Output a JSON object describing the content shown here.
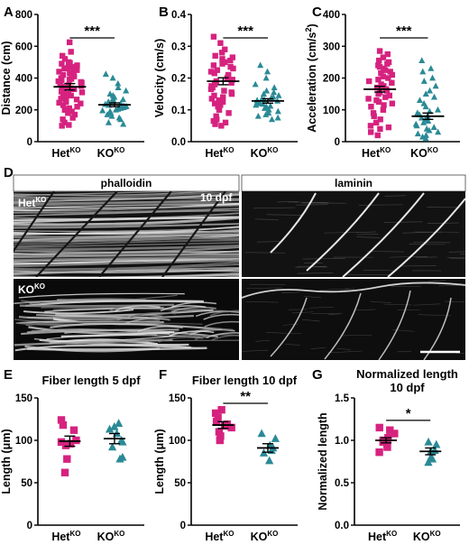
{
  "colors": {
    "het": "#d6227f",
    "ko": "#2a8a96",
    "axis": "#000000",
    "micro_bg": "#101010"
  },
  "panels": {
    "A": "A",
    "B": "B",
    "C": "C",
    "D": "D",
    "E": "E",
    "F": "F",
    "G": "G"
  },
  "microscopy": {
    "header_left": "phalloidin",
    "header_right": "laminin",
    "label_top": "Het",
    "label_top_sup": "KO",
    "label_bottom": "KO",
    "label_bottom_sup": "KO",
    "stage_label": "10 dpf"
  },
  "chart_data": [
    {
      "id": "A",
      "type": "scatter",
      "title": "",
      "ylabel": "Distance (cm)",
      "ylim": [
        0,
        800
      ],
      "yticks": [
        0,
        200,
        400,
        600,
        800
      ],
      "categories": [
        "Het",
        "KO"
      ],
      "category_sup": [
        "KO",
        "KO"
      ],
      "markers": [
        "square",
        "triangle"
      ],
      "significance": "***",
      "means": [
        345,
        232
      ],
      "sem": [
        20,
        12
      ],
      "series": [
        {
          "values": [
            625,
            565,
            540,
            520,
            500,
            495,
            490,
            480,
            470,
            465,
            460,
            450,
            445,
            440,
            430,
            420,
            410,
            400,
            395,
            390,
            385,
            380,
            375,
            370,
            360,
            355,
            350,
            345,
            340,
            335,
            330,
            320,
            315,
            310,
            300,
            295,
            290,
            280,
            270,
            265,
            260,
            250,
            245,
            240,
            230,
            220,
            210,
            200,
            190,
            180,
            170,
            150,
            140,
            120,
            105,
            100
          ]
        },
        {
          "values": [
            425,
            400,
            365,
            340,
            320,
            300,
            290,
            280,
            270,
            265,
            260,
            255,
            250,
            245,
            240,
            235,
            230,
            228,
            225,
            222,
            220,
            215,
            210,
            205,
            200,
            195,
            190,
            180,
            170,
            160,
            150,
            140,
            120,
            110
          ]
        }
      ]
    },
    {
      "id": "B",
      "type": "scatter",
      "title": "",
      "ylabel": "Velocity (cm/s)",
      "ylim": [
        0,
        0.4
      ],
      "yticks": [
        0.0,
        0.1,
        0.2,
        0.3,
        0.4
      ],
      "ytick_labels": [
        "0.0",
        "0.1",
        "0.2",
        "0.3",
        "0.4"
      ],
      "categories": [
        "Het",
        "KO"
      ],
      "category_sup": [
        "KO",
        "KO"
      ],
      "markers": [
        "square",
        "triangle"
      ],
      "significance": "***",
      "means": [
        0.19,
        0.128
      ],
      "sem": [
        0.011,
        0.007
      ],
      "series": [
        {
          "values": [
            0.33,
            0.31,
            0.29,
            0.28,
            0.27,
            0.265,
            0.26,
            0.255,
            0.25,
            0.245,
            0.24,
            0.235,
            0.23,
            0.225,
            0.22,
            0.215,
            0.21,
            0.205,
            0.2,
            0.195,
            0.19,
            0.185,
            0.18,
            0.175,
            0.17,
            0.165,
            0.16,
            0.155,
            0.15,
            0.145,
            0.14,
            0.135,
            0.13,
            0.125,
            0.12,
            0.115,
            0.11,
            0.1,
            0.09,
            0.08,
            0.07,
            0.065,
            0.06,
            0.055,
            0.05
          ]
        },
        {
          "values": [
            0.24,
            0.22,
            0.2,
            0.18,
            0.17,
            0.16,
            0.155,
            0.15,
            0.145,
            0.14,
            0.138,
            0.135,
            0.132,
            0.13,
            0.128,
            0.125,
            0.122,
            0.12,
            0.118,
            0.115,
            0.112,
            0.11,
            0.105,
            0.1,
            0.095,
            0.09,
            0.085,
            0.08,
            0.075,
            0.07
          ]
        }
      ]
    },
    {
      "id": "C",
      "type": "scatter",
      "title": "",
      "ylabel": "Acceleration (cm/s",
      "ylabel_sup": "2",
      "ylabel_end": ")",
      "ylim": [
        0,
        400
      ],
      "yticks": [
        0,
        100,
        200,
        300,
        400
      ],
      "categories": [
        "Het",
        "KO"
      ],
      "category_sup": [
        "KO",
        "KO"
      ],
      "markers": [
        "square",
        "triangle"
      ],
      "significance": "***",
      "means": [
        165,
        80
      ],
      "sem": [
        9,
        10
      ],
      "series": [
        {
          "values": [
            285,
            275,
            265,
            255,
            250,
            245,
            240,
            235,
            230,
            225,
            220,
            215,
            210,
            205,
            200,
            195,
            190,
            185,
            180,
            175,
            170,
            165,
            160,
            155,
            150,
            145,
            140,
            135,
            130,
            125,
            120,
            115,
            110,
            100,
            90,
            80,
            70,
            60,
            50,
            45,
            40,
            30,
            20
          ]
        },
        {
          "values": [
            255,
            230,
            220,
            200,
            190,
            175,
            160,
            150,
            140,
            130,
            120,
            110,
            100,
            95,
            90,
            85,
            80,
            75,
            70,
            65,
            60,
            55,
            50,
            45,
            40,
            35,
            30,
            25,
            20,
            15,
            10
          ]
        }
      ]
    },
    {
      "id": "E",
      "type": "scatter",
      "title": "Fiber length 5 dpf",
      "ylabel": "Length (μm)",
      "ylim": [
        0,
        150
      ],
      "yticks": [
        0,
        50,
        100,
        150
      ],
      "categories": [
        "Het",
        "KO"
      ],
      "category_sup": [
        "KO",
        "KO"
      ],
      "markers": [
        "square",
        "triangle"
      ],
      "significance": "",
      "means": [
        99,
        102
      ],
      "sem": [
        6,
        6
      ],
      "series": [
        {
          "values": [
            124,
            118,
            112,
            100,
            98,
            96,
            94,
            78,
            62
          ]
        },
        {
          "values": [
            120,
            116,
            113,
            108,
            100,
            98,
            92,
            80,
            78
          ]
        }
      ]
    },
    {
      "id": "F",
      "type": "scatter",
      "title": "Fiber length 10 dpf",
      "ylabel": "Length (μm)",
      "ylim": [
        0,
        150
      ],
      "yticks": [
        0,
        50,
        100,
        150
      ],
      "categories": [
        "Het",
        "KO"
      ],
      "category_sup": [
        "KO",
        "KO"
      ],
      "markers": [
        "square",
        "triangle"
      ],
      "significance": "**",
      "means": [
        118,
        91
      ],
      "sem": [
        4,
        5
      ],
      "series": [
        {
          "values": [
            136,
            132,
            127,
            122,
            119,
            117,
            115,
            110,
            105,
            100
          ]
        },
        {
          "values": [
            108,
            102,
            94,
            91,
            88,
            85,
            76
          ]
        }
      ]
    },
    {
      "id": "G",
      "type": "scatter",
      "title": "Normalized length",
      "title_line2": "10 dpf",
      "ylabel": "Normalized length",
      "ylim": [
        0,
        1.5
      ],
      "yticks": [
        0.0,
        0.5,
        1.0,
        1.5
      ],
      "ytick_labels": [
        "0.0",
        "0.5",
        "1.0",
        "1.5"
      ],
      "categories": [
        "Het",
        "KO"
      ],
      "category_sup": [
        "KO",
        "KO"
      ],
      "markers": [
        "square",
        "triangle"
      ],
      "significance": "*",
      "means": [
        1.0,
        0.87
      ],
      "sem": [
        0.03,
        0.04
      ],
      "series": [
        {
          "values": [
            1.15,
            1.12,
            1.08,
            1.03,
            1.0,
            0.98,
            0.95,
            0.92,
            0.86
          ]
        },
        {
          "values": [
            0.98,
            0.95,
            0.88,
            0.87,
            0.8,
            0.78,
            0.74
          ]
        }
      ]
    }
  ]
}
